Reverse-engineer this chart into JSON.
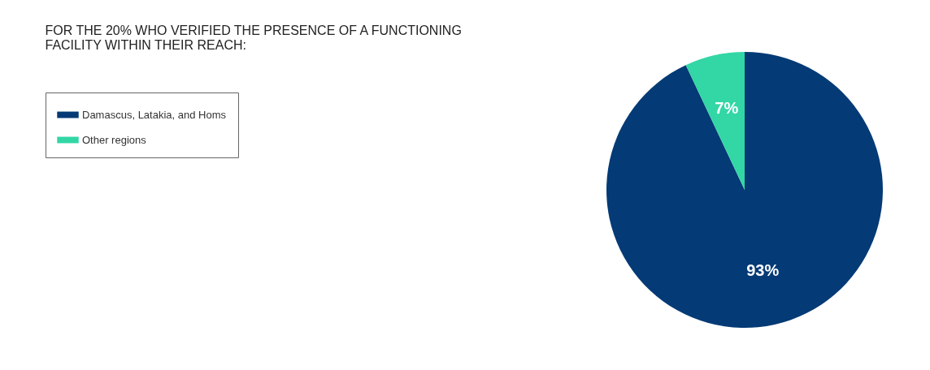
{
  "chart_data": {
    "type": "pie",
    "title": "FOR THE 20% WHO VERIFIED THE PRESENCE OF A FUNCTIONING FACILITY WITHIN THEIR REACH:",
    "categories": [
      "Damascus, Latakia, and Homs",
      "Other regions"
    ],
    "values": [
      93,
      7
    ],
    "colors": [
      "#043a75",
      "#33d6a5"
    ],
    "value_labels": [
      "93%",
      "7%"
    ],
    "legend": "left"
  }
}
